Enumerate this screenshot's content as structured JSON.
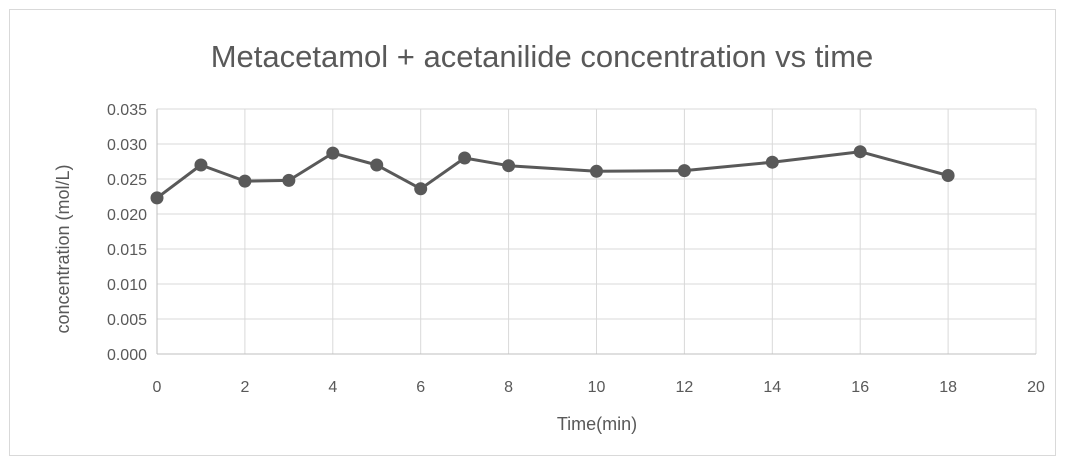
{
  "chart_data": {
    "type": "scatter",
    "title": "Metacetamol + acetanilide concentration vs time",
    "xlabel": "Time(min)",
    "ylabel": "concentration (mol/L)",
    "xlim": [
      0,
      20
    ],
    "ylim": [
      0,
      0.035
    ],
    "x_ticks": [
      "0",
      "2",
      "4",
      "6",
      "8",
      "10",
      "12",
      "14",
      "16",
      "18",
      "20"
    ],
    "y_ticks": [
      "0.000",
      "0.005",
      "0.010",
      "0.015",
      "0.020",
      "0.025",
      "0.030",
      "0.035"
    ],
    "grid": true,
    "legend": "none",
    "series": [
      {
        "x": [
          0,
          1,
          2,
          3,
          4,
          5,
          6,
          7,
          8,
          10,
          12,
          14,
          16,
          18
        ],
        "y": [
          0.0223,
          0.027,
          0.0247,
          0.0248,
          0.0287,
          0.027,
          0.0236,
          0.028,
          0.0269,
          0.0261,
          0.0262,
          0.0274,
          0.0289,
          0.0255
        ],
        "color": "#595959",
        "marker": "circle",
        "line": "straight"
      }
    ]
  }
}
